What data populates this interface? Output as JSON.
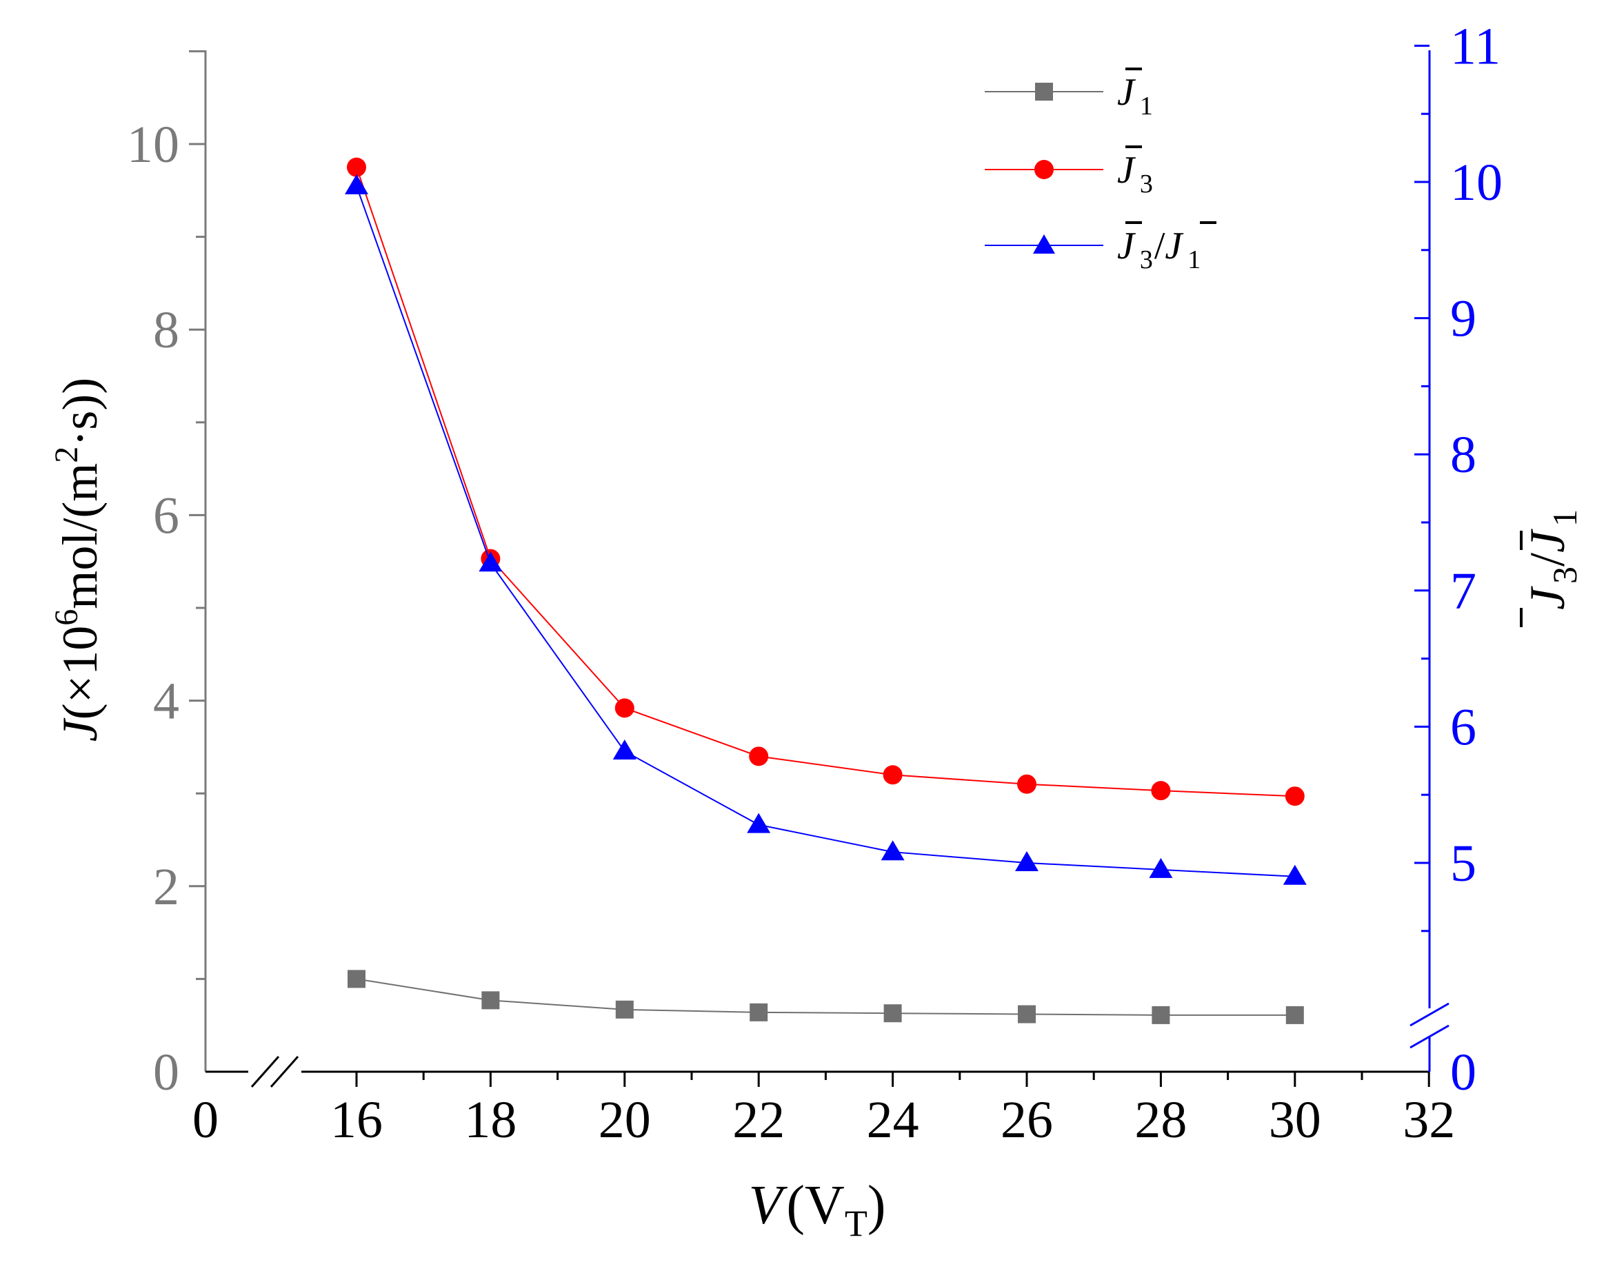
{
  "chart_data": {
    "type": "line",
    "x": [
      16,
      18,
      20,
      22,
      24,
      26,
      28,
      30
    ],
    "series": [
      {
        "name": "J1",
        "axis": "left",
        "color": "#707070",
        "marker": "square",
        "values": [
          1.0,
          0.77,
          0.67,
          0.64,
          0.63,
          0.62,
          0.61,
          0.61
        ]
      },
      {
        "name": "J3",
        "axis": "left",
        "color": "#ff0000",
        "marker": "circle",
        "values": [
          9.75,
          5.53,
          3.92,
          3.4,
          3.2,
          3.1,
          3.03,
          2.97
        ]
      },
      {
        "name": "J3/J1",
        "axis": "right",
        "color": "#0000ff",
        "marker": "triangle",
        "values": [
          9.97,
          7.2,
          5.82,
          5.28,
          5.08,
          5.0,
          4.95,
          4.9
        ]
      }
    ],
    "legend_labels": [
      {
        "sym": "J",
        "sub": "1"
      },
      {
        "sym": "J",
        "sub": "3"
      },
      {
        "sym": "J",
        "sub": "3",
        "slash": "/",
        "sym2": "J",
        "sub2": "1"
      }
    ],
    "legend_position": "top-right",
    "xlabel": {
      "var": "V",
      "unit_open": "(V",
      "unit_sub": "T",
      "unit_close": ")"
    },
    "ylabel_left": {
      "var": "J",
      "text1": "(×10",
      "sup1": "6",
      "text2": "mol/(m",
      "sup2": "2",
      "text3": "·s))"
    },
    "ylabel_right": {
      "sym": "J",
      "sub": "3",
      "slash": "/",
      "sym2": "J",
      "sub2": "1"
    },
    "x_ticks": [
      "0",
      "16",
      "18",
      "20",
      "22",
      "24",
      "26",
      "28",
      "30",
      "32"
    ],
    "y_left_ticks": [
      "0",
      "2",
      "4",
      "6",
      "8",
      "10"
    ],
    "y_right_ticks": [
      "0",
      "5",
      "6",
      "7",
      "8",
      "9",
      "10",
      "11"
    ],
    "ylim_left": [
      0,
      11
    ],
    "ylim_right_broken": {
      "bottom_label": "0",
      "range": [
        4,
        11
      ]
    },
    "xlim_broken": {
      "left_label": "0",
      "range": [
        14.8,
        32
      ]
    },
    "grid": false,
    "colors": {
      "left_axis": "#7a7a7a",
      "right_axis": "#0000ff",
      "x_axis": "#000000"
    }
  }
}
